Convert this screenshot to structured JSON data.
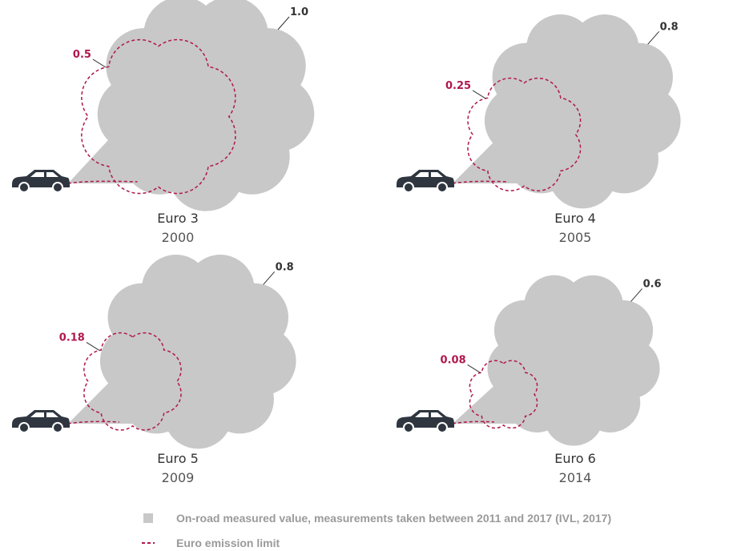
{
  "panels": [
    {
      "name": "Euro 3",
      "year": "2000",
      "measured": "1.0",
      "limit": "0.5"
    },
    {
      "name": "Euro 4",
      "year": "2005",
      "measured": "0.8",
      "limit": "0.25"
    },
    {
      "name": "Euro 5",
      "year": "2009",
      "measured": "0.8",
      "limit": "0.18"
    },
    {
      "name": "Euro 6",
      "year": "2014",
      "measured": "0.6",
      "limit": "0.08"
    }
  ],
  "legend": {
    "measured": "On-road measured value, measurements taken between 2011 and 2017 (IVL, 2017)",
    "limit": "Euro emission limit"
  }
}
